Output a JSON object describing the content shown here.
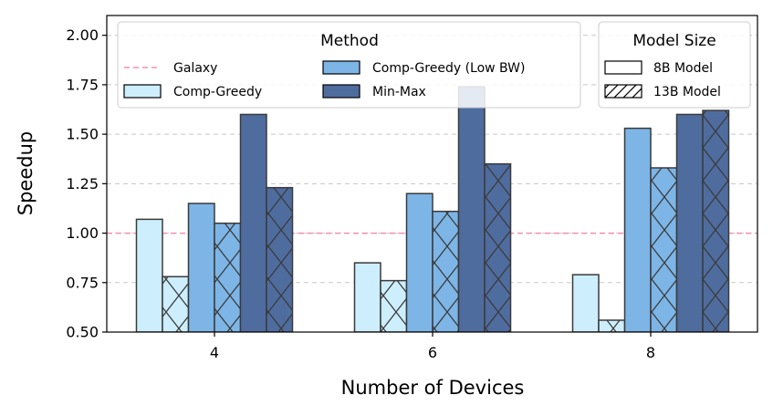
{
  "chart_data": {
    "type": "bar",
    "title": "",
    "xlabel": "Number of Devices",
    "ylabel": "Speedup",
    "categories": [
      "4",
      "6",
      "8"
    ],
    "ylim": [
      0.5,
      2.1
    ],
    "yticks": [
      "0.50",
      "0.75",
      "1.00",
      "1.25",
      "1.50",
      "1.75",
      "2.00"
    ],
    "ytick_values": [
      0.5,
      0.75,
      1.0,
      1.25,
      1.5,
      1.75,
      2.0
    ],
    "grid": "horizontal dashed",
    "series": [
      {
        "name": "Comp-Greedy",
        "model": "8B Model",
        "color": "#cdeefc",
        "hatch": "none",
        "values": [
          1.07,
          0.85,
          0.79
        ]
      },
      {
        "name": "Comp-Greedy",
        "model": "13B Model",
        "color": "#cdeefc",
        "hatch": "x",
        "values": [
          0.78,
          0.76,
          0.56
        ]
      },
      {
        "name": "Comp-Greedy (Low BW)",
        "model": "8B Model",
        "color": "#7db5e6",
        "hatch": "none",
        "values": [
          1.15,
          1.2,
          1.53
        ]
      },
      {
        "name": "Comp-Greedy (Low BW)",
        "model": "13B Model",
        "color": "#7db5e6",
        "hatch": "x",
        "values": [
          1.05,
          1.11,
          1.33
        ]
      },
      {
        "name": "Min-Max",
        "model": "8B Model",
        "color": "#4f6c9f",
        "hatch": "none",
        "values": [
          1.6,
          1.74,
          1.6
        ]
      },
      {
        "name": "Min-Max",
        "model": "13B Model",
        "color": "#4f6c9f",
        "hatch": "x",
        "values": [
          1.23,
          1.35,
          1.62
        ]
      }
    ],
    "reference_line": {
      "name": "Galaxy",
      "value": 1.0,
      "color": "#f48fb1",
      "style": "dashed"
    },
    "legend_method": {
      "title": "Method",
      "placement": "top-center",
      "entries": [
        {
          "label": "Galaxy",
          "kind": "line",
          "color": "#f48fb1"
        },
        {
          "label": "Comp-Greedy",
          "kind": "patch",
          "color": "#cdeefc"
        },
        {
          "label": "Comp-Greedy (Low BW)",
          "kind": "patch",
          "color": "#7db5e6"
        },
        {
          "label": "Min-Max",
          "kind": "patch",
          "color": "#4f6c9f"
        }
      ]
    },
    "legend_model": {
      "title": "Model Size",
      "placement": "top-right",
      "entries": [
        {
          "label": "8B Model",
          "hatch": "none"
        },
        {
          "label": "13B Model",
          "hatch": "x"
        }
      ]
    }
  }
}
